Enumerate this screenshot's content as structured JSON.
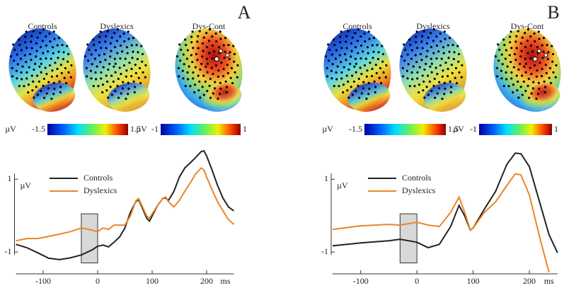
{
  "chart_data": [
    {
      "type": "line",
      "label": "A",
      "maps": [
        {
          "title": "Controls"
        },
        {
          "title": "Dyslexics"
        },
        {
          "title": "Dys-Cont"
        }
      ],
      "colorbars": [
        {
          "unit": "µV",
          "lim": [
            -1.5,
            1.5
          ]
        },
        {
          "unit": "µV",
          "lim": [
            -1,
            1
          ]
        }
      ],
      "x": [
        -150,
        -130,
        -110,
        -90,
        -70,
        -50,
        -30,
        -10,
        0,
        10,
        20,
        30,
        40,
        50,
        60,
        70,
        75,
        80,
        90,
        95,
        100,
        110,
        120,
        125,
        130,
        140,
        150,
        160,
        170,
        180,
        190,
        195,
        200,
        210,
        220,
        230,
        240,
        250
      ],
      "series": [
        {
          "name": "Controls",
          "color": "#222222",
          "values": [
            -0.79,
            -0.88,
            -1.02,
            -1.17,
            -1.21,
            -1.16,
            -1.08,
            -0.94,
            -0.84,
            -0.81,
            -0.86,
            -0.73,
            -0.59,
            -0.34,
            0.09,
            0.38,
            0.44,
            0.28,
            -0.07,
            -0.15,
            -0.01,
            0.28,
            0.48,
            0.48,
            0.42,
            0.67,
            1.06,
            1.31,
            1.45,
            1.6,
            1.76,
            1.78,
            1.64,
            1.25,
            0.83,
            0.48,
            0.24,
            0.13
          ]
        },
        {
          "name": "Dyslexics",
          "color": "#e8862a",
          "values": [
            -0.69,
            -0.63,
            -0.63,
            -0.57,
            -0.51,
            -0.44,
            -0.34,
            -0.4,
            -0.44,
            -0.34,
            -0.38,
            -0.26,
            -0.26,
            -0.26,
            -0.01,
            0.4,
            0.47,
            0.32,
            -0.01,
            -0.07,
            0.05,
            0.28,
            0.48,
            0.51,
            0.38,
            0.24,
            0.42,
            0.67,
            0.9,
            1.15,
            1.31,
            1.25,
            1.06,
            0.71,
            0.38,
            0.13,
            -0.11,
            -0.24
          ]
        }
      ],
      "xlim": [
        -150,
        250
      ],
      "xticks": [
        -100,
        0,
        100,
        200
      ],
      "xlabel": "ms",
      "ylim": [
        -1.6,
        1.9
      ],
      "yticks": [
        -1,
        1
      ],
      "ylabel": "µV",
      "highlight": {
        "x": [
          -30,
          0
        ],
        "y": [
          -1.3,
          0.05
        ]
      }
    },
    {
      "type": "line",
      "label": "B",
      "maps": [
        {
          "title": "Controls"
        },
        {
          "title": "Dyslexics"
        },
        {
          "title": "Dys-Cont"
        }
      ],
      "colorbars": [
        {
          "unit": "µV",
          "lim": [
            -1.5,
            1.5
          ]
        },
        {
          "unit": "µV",
          "lim": [
            -1,
            1
          ]
        }
      ],
      "x": [
        -150,
        -100,
        -50,
        -30,
        0,
        20,
        40,
        60,
        75,
        85,
        95,
        100,
        120,
        140,
        160,
        175,
        185,
        200,
        220,
        235,
        250
      ],
      "series": [
        {
          "name": "Controls",
          "color": "#222222",
          "values": [
            -0.83,
            -0.75,
            -0.69,
            -0.65,
            -0.73,
            -0.88,
            -0.79,
            -0.3,
            0.28,
            -0.01,
            -0.4,
            -0.34,
            0.18,
            0.67,
            1.41,
            1.72,
            1.7,
            1.35,
            0.28,
            -0.52,
            -1.02
          ]
        },
        {
          "name": "Dyslexics",
          "color": "#e8862a",
          "values": [
            -0.38,
            -0.28,
            -0.24,
            -0.26,
            -0.18,
            -0.26,
            -0.3,
            0.09,
            0.51,
            0.09,
            -0.4,
            -0.34,
            0.09,
            0.38,
            0.83,
            1.15,
            1.12,
            0.57,
            -0.69,
            -1.56,
            null
          ]
        }
      ],
      "xlim": [
        -150,
        250
      ],
      "xticks": [
        -100,
        0,
        100,
        200
      ],
      "xlabel": "ms",
      "ylim": [
        -1.6,
        1.9
      ],
      "yticks": [
        -1,
        1
      ],
      "ylabel": "µV",
      "highlight": {
        "x": [
          -30,
          0
        ],
        "y": [
          -1.3,
          0.05
        ]
      }
    }
  ]
}
